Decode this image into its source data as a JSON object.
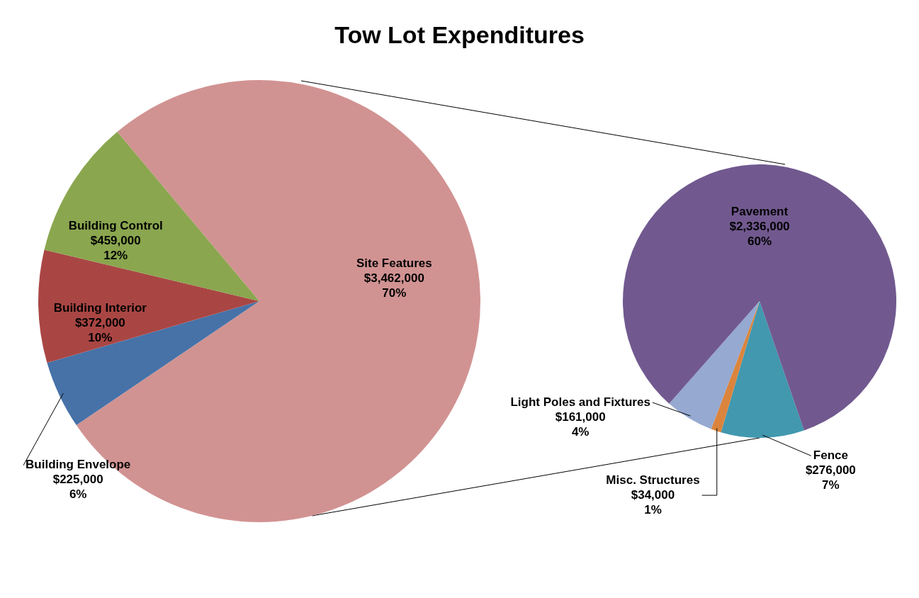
{
  "chart_data": [
    {
      "type": "pie",
      "title": "Tow Lot Expenditures",
      "categories": [
        "Site Features",
        "Building Envelope",
        "Building Interior",
        "Building Control"
      ],
      "values": [
        3462000,
        225000,
        372000,
        459000
      ],
      "colors": [
        "#d19392",
        "#4672a8",
        "#a94644",
        "#8aa64e"
      ],
      "value_labels": [
        "$3,462,000\n70%",
        "$225,000\n6%",
        "$372,000\n10%",
        "$459,000\n12%"
      ]
    },
    {
      "type": "pie",
      "categories": [
        "Fence",
        "Misc. Structures",
        "Light Poles and Fixtures",
        "Pavement"
      ],
      "values": [
        276000,
        34000,
        161000,
        2336000
      ],
      "colors": [
        "#4198af",
        "#db843d",
        "#95a9d1",
        "#71598f"
      ],
      "value_labels": [
        "$276,000\n7%",
        "$34,000\n1%",
        "$161,000\n4%",
        "$2,336,000\n60%"
      ]
    }
  ]
}
